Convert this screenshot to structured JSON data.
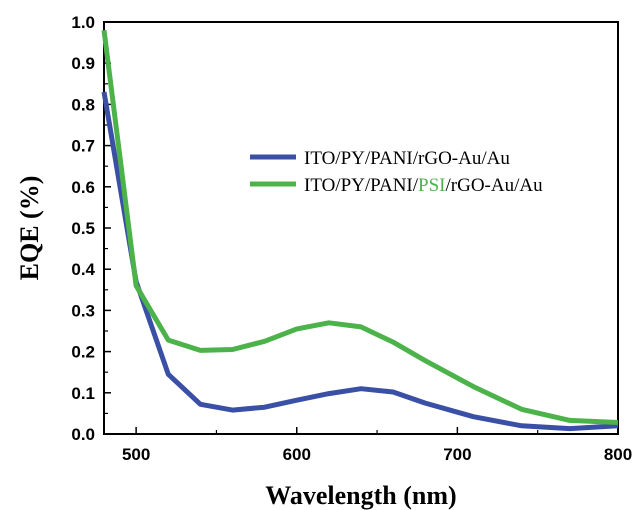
{
  "chart_data": {
    "type": "line",
    "xlabel": "Wavelength (nm)",
    "ylabel": "EQE (%)",
    "xlim": [
      480,
      800
    ],
    "ylim": [
      0.0,
      1.0
    ],
    "x_ticks": [
      500,
      600,
      700,
      800
    ],
    "y_ticks": [
      0.0,
      0.1,
      0.2,
      0.3,
      0.4,
      0.5,
      0.6,
      0.7,
      0.8,
      0.9,
      1.0
    ],
    "legend_position": "center-right",
    "grid": false,
    "series": [
      {
        "name": "ITO/PY/PANI/rGO-Au/Au",
        "color": "#3a4fa6",
        "x": [
          480,
          500,
          520,
          540,
          560,
          580,
          600,
          620,
          640,
          660,
          680,
          710,
          740,
          770,
          800
        ],
        "y": [
          0.83,
          0.37,
          0.145,
          0.072,
          0.058,
          0.065,
          0.082,
          0.098,
          0.11,
          0.102,
          0.075,
          0.042,
          0.02,
          0.013,
          0.02
        ]
      },
      {
        "name_parts": [
          "ITO/PY/PANI/",
          "PSI",
          "/rGO-Au/Au"
        ],
        "name_part_colors": [
          "#000000",
          "#4cb34a",
          "#000000"
        ],
        "color": "#4cb34a",
        "x": [
          480,
          500,
          520,
          540,
          560,
          580,
          600,
          620,
          640,
          660,
          680,
          710,
          740,
          770,
          800
        ],
        "y": [
          0.98,
          0.36,
          0.228,
          0.203,
          0.205,
          0.225,
          0.255,
          0.27,
          0.26,
          0.223,
          0.178,
          0.115,
          0.06,
          0.033,
          0.028
        ]
      }
    ]
  }
}
